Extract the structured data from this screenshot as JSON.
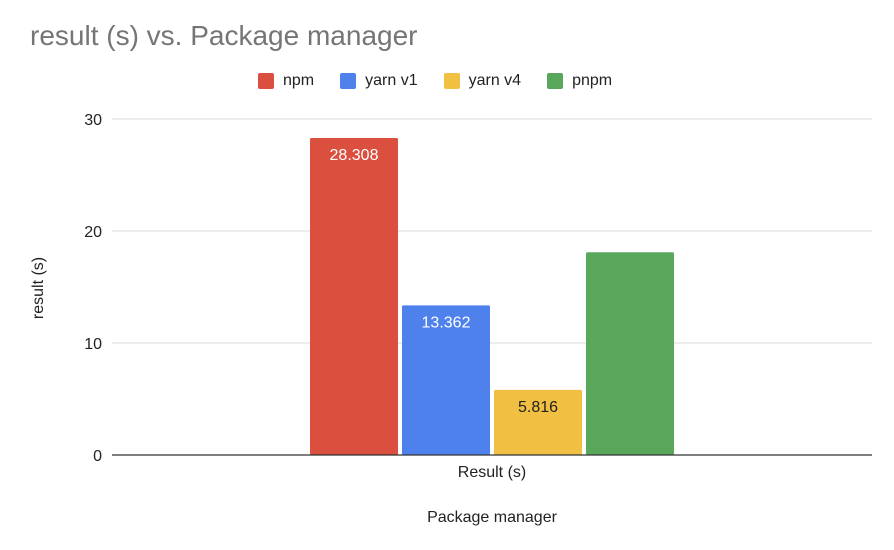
{
  "chart_data": {
    "type": "bar",
    "title": "result (s) vs. Package manager",
    "xlabel": "Package manager",
    "ylabel": "result (s)",
    "categories": [
      "Result (s)"
    ],
    "ylim": [
      0,
      30
    ],
    "yticks": [
      0,
      10,
      20,
      30
    ],
    "grid": true,
    "legend_position": "top",
    "series": [
      {
        "name": "npm",
        "values": [
          28.308
        ],
        "color": "#db4f3f",
        "label": "28.308",
        "label_color": "#ffffff"
      },
      {
        "name": "yarn v1",
        "values": [
          13.362
        ],
        "color": "#4f81ec",
        "label": "13.362",
        "label_color": "#ffffff"
      },
      {
        "name": "yarn v4",
        "values": [
          5.816
        ],
        "color": "#f1bf42",
        "label": "5.816",
        "label_color": "#222222"
      },
      {
        "name": "pnpm",
        "values": [
          18.1
        ],
        "color": "#59a75b",
        "label": "",
        "label_color": "#ffffff"
      }
    ]
  }
}
